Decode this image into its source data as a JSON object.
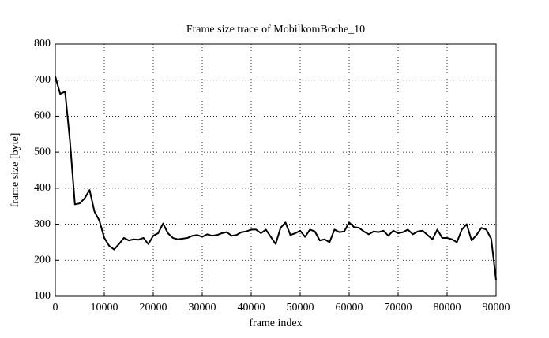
{
  "chart_data": {
    "type": "line",
    "title": "Frame size trace of MobilkomBoche_10",
    "x_label": "frame index",
    "y_label": "frame size [byte]",
    "x": [
      0,
      1000,
      2000,
      3000,
      4000,
      5000,
      6000,
      7000,
      8000,
      9000,
      10000,
      11000,
      12000,
      13000,
      14000,
      15000,
      16000,
      17000,
      18000,
      19000,
      20000,
      21000,
      22000,
      23000,
      24000,
      25000,
      26000,
      27000,
      28000,
      29000,
      30000,
      31000,
      32000,
      33000,
      34000,
      35000,
      36000,
      37000,
      38000,
      39000,
      40000,
      41000,
      42000,
      43000,
      44000,
      45000,
      46000,
      47000,
      48000,
      49000,
      50000,
      51000,
      52000,
      53000,
      54000,
      55000,
      56000,
      57000,
      58000,
      59000,
      60000,
      61000,
      62000,
      63000,
      64000,
      65000,
      66000,
      67000,
      68000,
      69000,
      70000,
      71000,
      72000,
      73000,
      74000,
      75000,
      76000,
      77000,
      78000,
      79000,
      80000,
      81000,
      82000,
      83000,
      84000,
      85000,
      86000,
      87000,
      88000,
      89000,
      90000
    ],
    "series": [
      {
        "name": "frame size",
        "color": "#000000",
        "values": [
          710,
          662,
          668,
          530,
          355,
          358,
          372,
          395,
          335,
          310,
          262,
          240,
          230,
          245,
          262,
          255,
          258,
          257,
          262,
          245,
          268,
          275,
          302,
          275,
          262,
          258,
          260,
          262,
          268,
          270,
          265,
          272,
          268,
          270,
          275,
          278,
          268,
          270,
          278,
          280,
          285,
          285,
          275,
          285,
          265,
          245,
          290,
          305,
          270,
          275,
          282,
          265,
          285,
          280,
          255,
          258,
          250,
          285,
          278,
          280,
          305,
          292,
          290,
          280,
          272,
          280,
          278,
          282,
          268,
          282,
          275,
          278,
          285,
          272,
          280,
          282,
          270,
          258,
          285,
          262,
          262,
          258,
          250,
          285,
          300,
          255,
          270,
          290,
          285,
          260,
          145
        ]
      }
    ],
    "xlim": [
      0,
      90000
    ],
    "ylim": [
      100,
      800
    ],
    "xticks": [
      0,
      10000,
      20000,
      30000,
      40000,
      50000,
      60000,
      70000,
      80000,
      90000
    ],
    "yticks": [
      100,
      200,
      300,
      400,
      500,
      600,
      700,
      800
    ],
    "grid": true
  }
}
